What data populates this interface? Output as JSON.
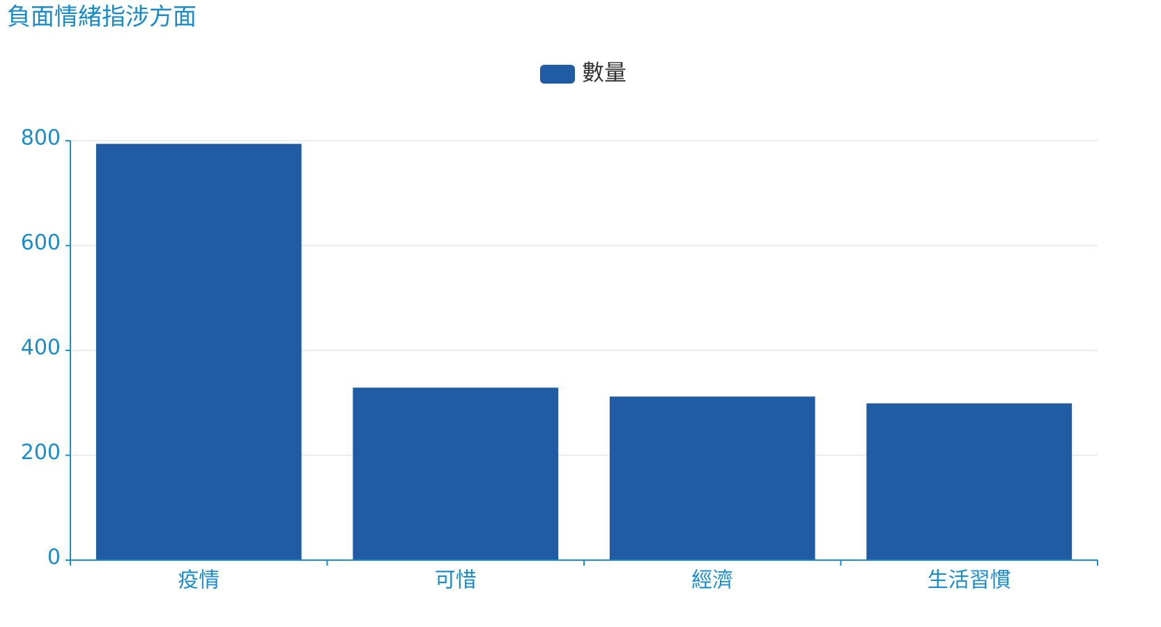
{
  "chart_data": {
    "type": "bar",
    "title": "負面情緒指涉方面",
    "categories": [
      "疫情",
      "可惜",
      "經濟",
      "生活習慣"
    ],
    "series": [
      {
        "name": "數量",
        "color": "#215ba3",
        "values": [
          794,
          329,
          312,
          299
        ]
      }
    ],
    "ylim": [
      0,
      800
    ],
    "yticks": [
      0,
      200,
      400,
      600,
      800
    ],
    "grid": true
  }
}
